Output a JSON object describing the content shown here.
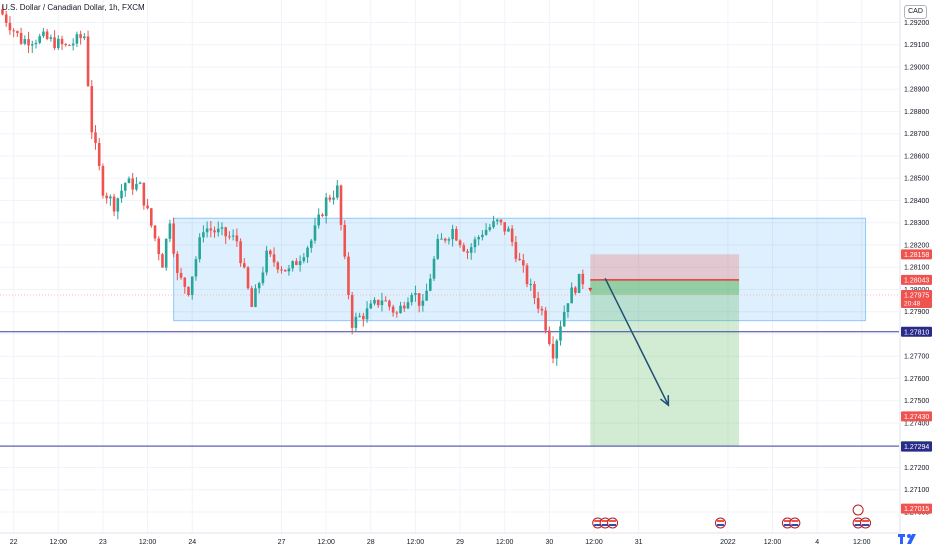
{
  "header": {
    "symbol_title": "U.S. Dollar / Canadian Dollar, 1h, FXCM",
    "currency": "CAD"
  },
  "colors": {
    "up": "#26a69a",
    "down": "#ef5350",
    "rect_fill": "rgba(33,150,243,0.15)",
    "rect_stroke": "#90caf9",
    "hline": "#3d3fa6",
    "stop_zone": "rgba(239,83,80,0.25)",
    "target_zone": "rgba(76,175,80,0.25)",
    "entry_line": "#e53935",
    "arrow": "#1e4f72",
    "axis_text": "#131722"
  },
  "chart_data": {
    "type": "candlestick",
    "title": "U.S. Dollar / Canadian Dollar, 1h, FXCM",
    "yaxis": {
      "range": [
        1.2695,
        1.2932
      ],
      "ticks": [
        "1.29200",
        "1.29100",
        "1.29000",
        "1.28900",
        "1.28800",
        "1.28700",
        "1.28600",
        "1.28500",
        "1.28400",
        "1.28300",
        "1.28200",
        "1.28100",
        "1.28000",
        "1.27900",
        "1.27800",
        "1.27700",
        "1.27600",
        "1.27500",
        "1.27400",
        "1.27300",
        "1.27200",
        "1.27100",
        "1.27000"
      ],
      "side": "right"
    },
    "xaxis": {
      "ticks": [
        {
          "label": "22",
          "idx": 3
        },
        {
          "label": "12:00",
          "idx": 15
        },
        {
          "label": "23",
          "idx": 27
        },
        {
          "label": "12:00",
          "idx": 39
        },
        {
          "label": "24",
          "idx": 51
        },
        {
          "label": "27",
          "idx": 75
        },
        {
          "label": "12:00",
          "idx": 87
        },
        {
          "label": "28",
          "idx": 99
        },
        {
          "label": "12:00",
          "idx": 111
        },
        {
          "label": "29",
          "idx": 123
        },
        {
          "label": "12:00",
          "idx": 135
        },
        {
          "label": "30",
          "idx": 147
        },
        {
          "label": "12:00",
          "idx": 159
        },
        {
          "label": "31",
          "idx": 171
        },
        {
          "label": "2022",
          "idx": 195
        },
        {
          "label": "12:00",
          "idx": 207
        },
        {
          "label": "4",
          "idx": 219
        },
        {
          "label": "12:00",
          "idx": 231
        }
      ]
    },
    "candles_shown": 157,
    "range_box": {
      "from_idx": 46,
      "to_idx": 232,
      "top": 1.2832,
      "bottom": 1.2786
    },
    "horizontal_lines": [
      1.2781,
      1.27296
    ],
    "short_position": {
      "from_idx": 158,
      "to_idx": 198,
      "stop": 1.28158,
      "entry": 1.28043,
      "target": 1.27296
    },
    "arrow": {
      "from_idx": 162,
      "from_price": 1.2805,
      "to_idx": 179,
      "to_price": 1.2748
    },
    "price_labels": [
      {
        "text": "1.28158",
        "value": 1.28158,
        "color": "#ef5350"
      },
      {
        "text": "1.28043",
        "value": 1.28043,
        "color": "#ef5350"
      },
      {
        "text": "1.27975",
        "sub": "20:48",
        "value": 1.27975,
        "color": "#ef5350"
      },
      {
        "text": "1.27810",
        "value": 1.2781,
        "color": "#2a2a8a"
      },
      {
        "text": "1.27430",
        "value": 1.2743,
        "color": "#ef5350"
      },
      {
        "text": "1.27296",
        "value": 1.27296,
        "color": "#4caf50"
      },
      {
        "text": "1.27294",
        "value": 1.27294,
        "color": "#2a2a8a"
      },
      {
        "text": "1.27015",
        "value": 1.27015,
        "color": "#ef5350"
      }
    ],
    "event_markers": [
      {
        "idx": 160,
        "kind": "flag"
      },
      {
        "idx": 162,
        "kind": "flag"
      },
      {
        "idx": 164,
        "kind": "flag"
      },
      {
        "idx": 193,
        "kind": "flag"
      },
      {
        "idx": 211,
        "kind": "flag"
      },
      {
        "idx": 213,
        "kind": "flag"
      },
      {
        "idx": 230,
        "kind": "flag"
      },
      {
        "idx": 232,
        "kind": "flag"
      }
    ]
  }
}
